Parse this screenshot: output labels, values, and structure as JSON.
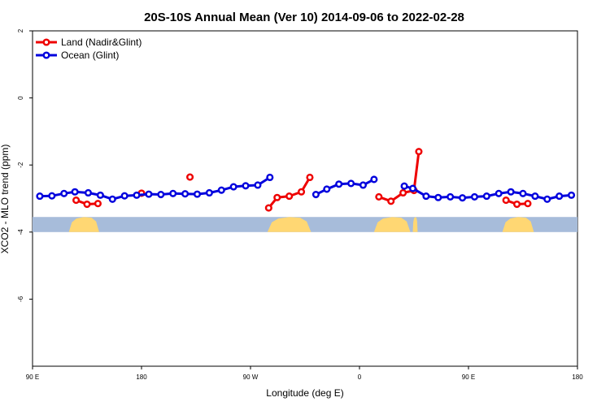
{
  "chart_data": {
    "type": "line",
    "title": "20S-10S Annual Mean (Ver 10)   2014-09-06 to 2022-02-28",
    "xlabel": "Longitude (deg E)",
    "ylabel": "XCO2 - MLO trend (ppm)",
    "xlim": [
      90,
      540
    ],
    "ylim": [
      -8,
      2
    ],
    "x_ticks": [
      {
        "value": 90,
        "label": "90 E"
      },
      {
        "value": 180,
        "label": "180"
      },
      {
        "value": 270,
        "label": "90 W"
      },
      {
        "value": 360,
        "label": "0"
      },
      {
        "value": 450,
        "label": "90 E"
      },
      {
        "value": 540,
        "label": "180"
      }
    ],
    "y_ticks": [
      {
        "value": 2,
        "label": "2"
      },
      {
        "value": 0,
        "label": "0"
      },
      {
        "value": -2,
        "label": "-2"
      },
      {
        "value": -4,
        "label": "-4"
      },
      {
        "value": -6,
        "label": "-6"
      }
    ],
    "grid": false,
    "legend_position": "top-left",
    "series": [
      {
        "name": "Land (Nadir&Glint)",
        "color": "#ee0000",
        "segments": [
          [
            [
              126,
              -3.05
            ],
            [
              135,
              -3.17
            ],
            [
              144,
              -3.15
            ]
          ],
          [
            [
              180,
              -2.84
            ]
          ],
          [
            [
              220,
              -2.36
            ]
          ],
          [
            [
              285,
              -3.28
            ],
            [
              292,
              -2.97
            ],
            [
              302,
              -2.93
            ],
            [
              312,
              -2.8
            ],
            [
              319,
              -2.37
            ]
          ],
          [
            [
              376,
              -2.95
            ],
            [
              386,
              -3.08
            ],
            [
              396,
              -2.83
            ],
            [
              405,
              -2.76
            ],
            [
              409,
              -1.6
            ]
          ],
          [
            [
              481,
              -3.05
            ],
            [
              490,
              -3.17
            ],
            [
              499,
              -3.15
            ]
          ]
        ]
      },
      {
        "name": "Ocean (Glint)",
        "color": "#0000dd",
        "segments": [
          [
            [
              96,
              -2.93
            ],
            [
              106,
              -2.92
            ],
            [
              116,
              -2.85
            ],
            [
              125,
              -2.8
            ],
            [
              136,
              -2.83
            ],
            [
              146,
              -2.9
            ],
            [
              156,
              -3.02
            ],
            [
              166,
              -2.92
            ],
            [
              176,
              -2.9
            ],
            [
              186,
              -2.87
            ],
            [
              196,
              -2.88
            ],
            [
              206,
              -2.85
            ],
            [
              216,
              -2.86
            ],
            [
              226,
              -2.87
            ],
            [
              236,
              -2.83
            ],
            [
              246,
              -2.75
            ],
            [
              256,
              -2.65
            ],
            [
              266,
              -2.62
            ],
            [
              276,
              -2.6
            ],
            [
              286,
              -2.37
            ]
          ],
          [
            [
              324,
              -2.88
            ],
            [
              333,
              -2.72
            ],
            [
              343,
              -2.57
            ],
            [
              353,
              -2.55
            ],
            [
              363,
              -2.6
            ],
            [
              372,
              -2.43
            ]
          ],
          [
            [
              397,
              -2.63
            ],
            [
              404,
              -2.7
            ],
            [
              415,
              -2.93
            ],
            [
              425,
              -2.97
            ],
            [
              435,
              -2.95
            ],
            [
              445,
              -2.98
            ],
            [
              455,
              -2.95
            ],
            [
              465,
              -2.93
            ],
            [
              475,
              -2.85
            ],
            [
              485,
              -2.8
            ],
            [
              495,
              -2.85
            ],
            [
              505,
              -2.93
            ],
            [
              515,
              -3.02
            ],
            [
              525,
              -2.93
            ],
            [
              535,
              -2.9
            ]
          ]
        ]
      }
    ],
    "land_band": {
      "y_range": [
        -3.55,
        -4.0
      ],
      "ocean_color": "#a7bcda",
      "land_color": "#ffd773",
      "land_regions": [
        [
          120,
          145
        ],
        [
          284,
          320
        ],
        [
          372,
          402
        ],
        [
          404,
          408
        ],
        [
          478,
          504
        ]
      ]
    }
  }
}
